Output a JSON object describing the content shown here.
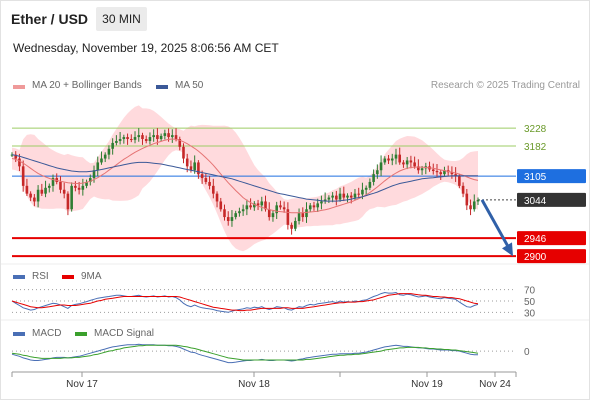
{
  "header": {
    "pair": "Ether / USD",
    "timeframe": "30 MIN",
    "datetime": "Wednesday, November 19, 2025 8:06:56 AM CET"
  },
  "legend": {
    "ma20": "MA 20 + Bollinger Bands",
    "ma50": "MA 50",
    "credit": "Research © 2025 Trading Central",
    "rsi": "RSI",
    "rsi_ma": "9MA",
    "macd": "MACD",
    "macd_signal": "MACD Signal"
  },
  "colors": {
    "bull": "#2e7d32",
    "bear": "#c62828",
    "bollinger": "#ffcdd2",
    "ma20": "#e57373",
    "ma50": "#3b5998",
    "resistance": "#9ccc65",
    "support": "#e60000",
    "current": "#333333",
    "pivot": "#1e6fe0",
    "arrow": "#3060a8"
  },
  "chart_data": [
    {
      "type": "candlestick",
      "title": "Ether / USD",
      "timeframe": "30 MIN",
      "x_ticks": [
        "Nov 17",
        "Nov 18",
        "Nov 19",
        "Nov 24"
      ],
      "levels": [
        {
          "value": 3228,
          "label": "3228",
          "kind": "resistance"
        },
        {
          "value": 3182,
          "label": "3182",
          "kind": "resistance"
        },
        {
          "value": 3105,
          "label": "3105",
          "kind": "pivot"
        },
        {
          "value": 3044,
          "label": "3044",
          "kind": "current"
        },
        {
          "value": 2946,
          "label": "2946",
          "kind": "support"
        },
        {
          "value": 2900,
          "label": "2900",
          "kind": "support"
        }
      ],
      "ylim": [
        2890,
        3300
      ],
      "close": [
        3160,
        3150,
        3130,
        3080,
        3060,
        3050,
        3040,
        3070,
        3060,
        3075,
        3080,
        3100,
        3090,
        3070,
        3060,
        3020,
        3080,
        3075,
        3070,
        3080,
        3090,
        3100,
        3120,
        3140,
        3150,
        3160,
        3175,
        3190,
        3195,
        3200,
        3205,
        3200,
        3198,
        3205,
        3210,
        3200,
        3195,
        3205,
        3210,
        3200,
        3208,
        3215,
        3205,
        3210,
        3200,
        3180,
        3150,
        3130,
        3120,
        3140,
        3110,
        3100,
        3090,
        3080,
        3060,
        3040,
        3020,
        3000,
        2990,
        3000,
        3010,
        3015,
        3020,
        3030,
        3025,
        3035,
        3030,
        3040,
        3020,
        3000,
        3010,
        3030,
        3025,
        3020,
        2980,
        2970,
        2990,
        3010,
        3000,
        3020,
        3030,
        3025,
        3035,
        3040,
        3045,
        3050,
        3055,
        3045,
        3060,
        3050,
        3055,
        3050,
        3060,
        3058,
        3070,
        3075,
        3090,
        3110,
        3120,
        3140,
        3150,
        3145,
        3150,
        3160,
        3140,
        3135,
        3145,
        3140,
        3130,
        3120,
        3125,
        3130,
        3122,
        3118,
        3115,
        3110,
        3120,
        3115,
        3110,
        3105,
        3080,
        3060,
        3030,
        3020,
        3040,
        3044
      ],
      "series": [
        {
          "name": "MA 20",
          "values": [
            3150,
            3148,
            3144,
            3138,
            3132,
            3125,
            3118,
            3112,
            3107,
            3103,
            3099,
            3096,
            3094,
            3092,
            3090,
            3088,
            3087,
            3086,
            3086,
            3087,
            3089,
            3092,
            3096,
            3101,
            3107,
            3113,
            3120,
            3127,
            3134,
            3141,
            3148,
            3154,
            3160,
            3166,
            3171,
            3176,
            3180,
            3184,
            3188,
            3191,
            3194,
            3197,
            3199,
            3200,
            3199,
            3197,
            3193,
            3188,
            3182,
            3176,
            3169,
            3161,
            3152,
            3143,
            3133,
            3122,
            3110,
            3099,
            3088,
            3078,
            3068,
            3059,
            3050,
            3043,
            3037,
            3032,
            3028,
            3025,
            3022,
            3019,
            3017,
            3015,
            3014,
            3013,
            3012,
            3011,
            3011,
            3011,
            3011,
            3012,
            3013,
            3014,
            3015,
            3017,
            3019,
            3021,
            3024,
            3027,
            3030,
            3033,
            3036,
            3039,
            3043,
            3047,
            3052,
            3057,
            3063,
            3070,
            3077,
            3085,
            3093,
            3100,
            3107,
            3113,
            3118,
            3122,
            3125,
            3127,
            3128,
            3128,
            3128,
            3127,
            3126,
            3125,
            3123,
            3121,
            3119,
            3117,
            3115,
            3113,
            3110,
            3107,
            3103,
            3099,
            3096,
            3094
          ]
        },
        {
          "name": "MA 50",
          "values": [
            3160,
            3158,
            3156,
            3153,
            3150,
            3147,
            3144,
            3141,
            3138,
            3135,
            3132,
            3129,
            3126,
            3124,
            3122,
            3120,
            3118,
            3117,
            3116,
            3116,
            3116,
            3117,
            3118,
            3120,
            3122,
            3124,
            3126,
            3128,
            3130,
            3132,
            3134,
            3136,
            3138,
            3139,
            3140,
            3140,
            3140,
            3139,
            3138,
            3137,
            3136,
            3134,
            3132,
            3130,
            3128,
            3126,
            3124,
            3122,
            3120,
            3118,
            3116,
            3114,
            3112,
            3110,
            3108,
            3106,
            3104,
            3102,
            3100,
            3098,
            3095,
            3092,
            3089,
            3086,
            3083,
            3080,
            3077,
            3074,
            3071,
            3068,
            3065,
            3062,
            3060,
            3058,
            3056,
            3054,
            3052,
            3050,
            3048,
            3046,
            3045,
            3044,
            3043,
            3042,
            3041,
            3041,
            3041,
            3041,
            3042,
            3043,
            3044,
            3046,
            3048,
            3050,
            3052,
            3055,
            3058,
            3061,
            3064,
            3068,
            3072,
            3076,
            3080,
            3083,
            3086,
            3088,
            3090,
            3092,
            3094,
            3096,
            3098,
            3099,
            3100,
            3101,
            3102,
            3103,
            3104,
            3105,
            3106,
            3106,
            3106,
            3106,
            3106,
            3106,
            3106,
            3106
          ]
        }
      ]
    },
    {
      "type": "line",
      "title": "RSI",
      "y_ticks": [
        "70",
        "50",
        "30"
      ],
      "ylim": [
        20,
        80
      ],
      "series": [
        {
          "name": "RSI",
          "values": [
            50,
            46,
            42,
            38,
            36,
            34,
            35,
            38,
            40,
            42,
            44,
            46,
            45,
            43,
            40,
            37,
            42,
            44,
            45,
            47,
            49,
            51,
            53,
            55,
            56,
            57,
            58,
            59,
            60,
            60,
            59,
            58,
            58,
            59,
            60,
            58,
            57,
            58,
            59,
            57,
            58,
            59,
            57,
            58,
            56,
            52,
            46,
            42,
            40,
            43,
            40,
            38,
            37,
            36,
            35,
            33,
            32,
            31,
            30,
            32,
            34,
            35,
            36,
            38,
            37,
            39,
            38,
            40,
            37,
            35,
            37,
            40,
            39,
            38,
            35,
            34,
            37,
            40,
            39,
            42,
            44,
            43,
            45,
            46,
            47,
            48,
            49,
            47,
            50,
            48,
            49,
            48,
            50,
            49,
            51,
            52,
            55,
            58,
            60,
            63,
            65,
            64,
            64,
            65,
            61,
            60,
            62,
            61,
            59,
            57,
            58,
            59,
            57,
            56,
            55,
            54,
            56,
            55,
            54,
            53,
            48,
            44,
            40,
            39,
            42,
            44
          ]
        },
        {
          "name": "9MA",
          "values": [
            50,
            48,
            46,
            44,
            42,
            40,
            39,
            38,
            38,
            39,
            40,
            41,
            42,
            43,
            43,
            42,
            42,
            42,
            43,
            44,
            45,
            46,
            48,
            50,
            51,
            53,
            54,
            55,
            56,
            57,
            58,
            58,
            58,
            58,
            58,
            58,
            58,
            58,
            58,
            58,
            58,
            58,
            58,
            58,
            58,
            57,
            55,
            53,
            51,
            49,
            47,
            45,
            43,
            41,
            39,
            38,
            37,
            36,
            35,
            34,
            34,
            33,
            33,
            34,
            34,
            35,
            36,
            37,
            37,
            37,
            37,
            37,
            37,
            38,
            38,
            37,
            37,
            37,
            37,
            38,
            39,
            40,
            41,
            42,
            43,
            44,
            45,
            46,
            47,
            47,
            48,
            48,
            48,
            49,
            49,
            50,
            51,
            52,
            54,
            56,
            58,
            60,
            61,
            62,
            63,
            63,
            63,
            63,
            62,
            61,
            60,
            60,
            59,
            58,
            58,
            57,
            57,
            56,
            56,
            55,
            54,
            52,
            50,
            48,
            46,
            45
          ]
        }
      ]
    },
    {
      "type": "line",
      "title": "MACD",
      "y_ticks": [
        "0"
      ],
      "ylim": [
        -40,
        25
      ],
      "series": [
        {
          "name": "MACD",
          "values": [
            -6,
            -8,
            -10,
            -13,
            -15,
            -17,
            -18,
            -18,
            -17,
            -16,
            -15,
            -13,
            -12,
            -12,
            -12,
            -13,
            -12,
            -11,
            -10,
            -8,
            -6,
            -4,
            -2,
            0,
            2,
            4,
            6,
            8,
            9,
            10,
            11,
            12,
            12,
            12,
            13,
            12,
            12,
            12,
            12,
            11,
            11,
            11,
            10,
            10,
            9,
            7,
            4,
            1,
            -2,
            -3,
            -6,
            -8,
            -10,
            -12,
            -14,
            -16,
            -18,
            -20,
            -22,
            -22,
            -21,
            -20,
            -19,
            -18,
            -18,
            -17,
            -17,
            -16,
            -17,
            -18,
            -18,
            -17,
            -17,
            -17,
            -18,
            -19,
            -18,
            -16,
            -15,
            -13,
            -12,
            -11,
            -10,
            -9,
            -8,
            -7,
            -6,
            -6,
            -5,
            -5,
            -5,
            -5,
            -4,
            -4,
            -3,
            -2,
            0,
            2,
            4,
            6,
            8,
            9,
            10,
            11,
            10,
            9,
            9,
            8,
            7,
            6,
            6,
            5,
            4,
            4,
            3,
            2,
            2,
            2,
            1,
            1,
            0,
            -2,
            -4,
            -6,
            -7,
            -7
          ]
        },
        {
          "name": "MACD Signal",
          "values": [
            -4,
            -5,
            -6,
            -8,
            -9,
            -11,
            -12,
            -13,
            -14,
            -14,
            -14,
            -14,
            -14,
            -14,
            -13,
            -13,
            -13,
            -12,
            -12,
            -11,
            -10,
            -9,
            -7,
            -6,
            -4,
            -2,
            0,
            1,
            3,
            4,
            6,
            7,
            8,
            9,
            10,
            10,
            11,
            11,
            11,
            11,
            11,
            11,
            11,
            11,
            11,
            10,
            9,
            8,
            6,
            5,
            3,
            1,
            -1,
            -3,
            -5,
            -7,
            -9,
            -11,
            -13,
            -14,
            -15,
            -16,
            -17,
            -17,
            -17,
            -17,
            -17,
            -17,
            -17,
            -17,
            -17,
            -17,
            -17,
            -17,
            -17,
            -17,
            -17,
            -17,
            -17,
            -16,
            -16,
            -15,
            -14,
            -13,
            -12,
            -11,
            -10,
            -9,
            -8,
            -8,
            -7,
            -7,
            -6,
            -6,
            -5,
            -4,
            -3,
            -2,
            -1,
            0,
            2,
            3,
            4,
            5,
            6,
            6,
            7,
            7,
            7,
            7,
            6,
            6,
            5,
            5,
            4,
            4,
            3,
            3,
            2,
            2,
            1,
            0,
            -1,
            -2,
            -3,
            -4
          ]
        }
      ]
    }
  ]
}
